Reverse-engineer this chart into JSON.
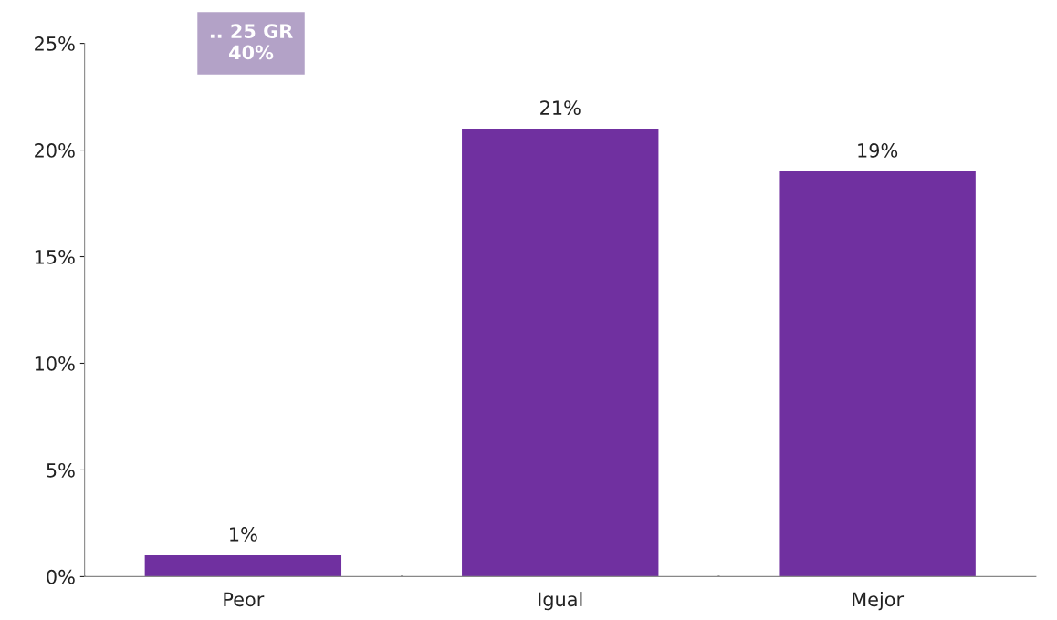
{
  "chart_data": {
    "type": "bar",
    "categories": [
      "Peor",
      "Igual",
      "Mejor"
    ],
    "values": [
      1,
      21,
      19
    ],
    "color": "#7030a0",
    "value_labels": [
      "1%",
      "21%",
      "19%"
    ],
    "ylim": [
      0,
      25
    ],
    "yticks": [
      {
        "value": 0,
        "label": "0%"
      },
      {
        "value": 5,
        "label": "5%"
      },
      {
        "value": 10,
        "label": "10%"
      },
      {
        "value": 15,
        "label": "15%"
      },
      {
        "value": 20,
        "label": "20%"
      },
      {
        "value": 25,
        "label": "25%"
      }
    ],
    "annotations": [
      ".. 25 GR\n40%"
    ],
    "grid": false,
    "legend": false
  }
}
